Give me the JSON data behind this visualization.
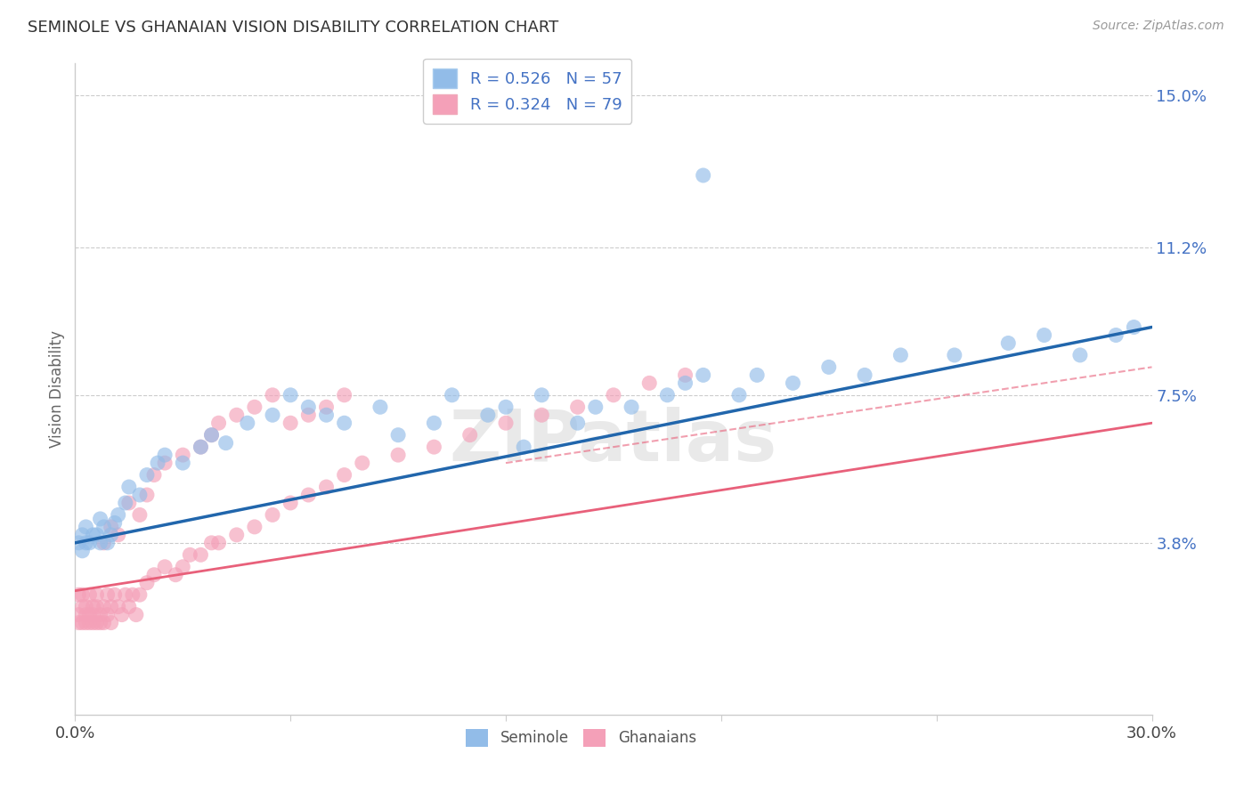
{
  "title": "SEMINOLE VS GHANAIAN VISION DISABILITY CORRELATION CHART",
  "source": "Source: ZipAtlas.com",
  "ylabel": "Vision Disability",
  "xlim": [
    0.0,
    0.3
  ],
  "ylim": [
    -0.005,
    0.158
  ],
  "xticks": [
    0.0,
    0.06,
    0.12,
    0.18,
    0.24,
    0.3
  ],
  "xticklabels": [
    "0.0%",
    "",
    "",
    "",
    "",
    "30.0%"
  ],
  "ytick_positions": [
    0.038,
    0.075,
    0.112,
    0.15
  ],
  "ytick_labels": [
    "3.8%",
    "7.5%",
    "11.2%",
    "15.0%"
  ],
  "seminole_R": 0.526,
  "seminole_N": 57,
  "ghanaian_R": 0.324,
  "ghanaian_N": 79,
  "seminole_color": "#92bce8",
  "ghanaian_color": "#f4a0b8",
  "seminole_line_color": "#2166ac",
  "ghanaian_line_color": "#e8607a",
  "background_color": "#ffffff",
  "watermark": "ZIPatlas",
  "seminole_x": [
    0.001,
    0.002,
    0.002,
    0.003,
    0.003,
    0.004,
    0.005,
    0.006,
    0.007,
    0.007,
    0.008,
    0.009,
    0.01,
    0.011,
    0.012,
    0.014,
    0.015,
    0.018,
    0.02,
    0.023,
    0.025,
    0.03,
    0.035,
    0.038,
    0.042,
    0.048,
    0.055,
    0.06,
    0.065,
    0.07,
    0.075,
    0.085,
    0.09,
    0.1,
    0.105,
    0.115,
    0.12,
    0.125,
    0.13,
    0.14,
    0.145,
    0.155,
    0.165,
    0.17,
    0.175,
    0.185,
    0.19,
    0.2,
    0.21,
    0.22,
    0.23,
    0.245,
    0.26,
    0.27,
    0.28,
    0.29,
    0.295
  ],
  "seminole_y": [
    0.038,
    0.04,
    0.036,
    0.038,
    0.042,
    0.038,
    0.04,
    0.04,
    0.038,
    0.044,
    0.042,
    0.038,
    0.04,
    0.043,
    0.045,
    0.048,
    0.052,
    0.05,
    0.055,
    0.058,
    0.06,
    0.058,
    0.062,
    0.065,
    0.063,
    0.068,
    0.07,
    0.075,
    0.072,
    0.07,
    0.068,
    0.072,
    0.065,
    0.068,
    0.075,
    0.07,
    0.072,
    0.062,
    0.075,
    0.068,
    0.072,
    0.072,
    0.075,
    0.078,
    0.08,
    0.075,
    0.08,
    0.078,
    0.082,
    0.08,
    0.085,
    0.085,
    0.088,
    0.09,
    0.085,
    0.09,
    0.092
  ],
  "seminole_outlier_x": [
    0.175
  ],
  "seminole_outlier_y": [
    0.13
  ],
  "ghanaian_x": [
    0.001,
    0.001,
    0.001,
    0.002,
    0.002,
    0.002,
    0.003,
    0.003,
    0.003,
    0.004,
    0.004,
    0.004,
    0.005,
    0.005,
    0.005,
    0.006,
    0.006,
    0.006,
    0.007,
    0.007,
    0.008,
    0.008,
    0.009,
    0.009,
    0.01,
    0.01,
    0.011,
    0.012,
    0.013,
    0.014,
    0.015,
    0.016,
    0.017,
    0.018,
    0.02,
    0.022,
    0.025,
    0.028,
    0.03,
    0.032,
    0.035,
    0.038,
    0.04,
    0.045,
    0.05,
    0.055,
    0.06,
    0.065,
    0.07,
    0.075,
    0.08,
    0.09,
    0.1,
    0.11,
    0.12,
    0.13,
    0.14,
    0.15,
    0.16,
    0.17,
    0.008,
    0.01,
    0.012,
    0.015,
    0.018,
    0.02,
    0.022,
    0.025,
    0.03,
    0.035,
    0.038,
    0.04,
    0.045,
    0.05,
    0.055,
    0.06,
    0.065,
    0.07,
    0.075
  ],
  "ghanaian_y": [
    0.025,
    0.02,
    0.018,
    0.022,
    0.018,
    0.025,
    0.02,
    0.018,
    0.022,
    0.018,
    0.02,
    0.025,
    0.018,
    0.022,
    0.02,
    0.018,
    0.022,
    0.025,
    0.02,
    0.018,
    0.022,
    0.018,
    0.025,
    0.02,
    0.018,
    0.022,
    0.025,
    0.022,
    0.02,
    0.025,
    0.022,
    0.025,
    0.02,
    0.025,
    0.028,
    0.03,
    0.032,
    0.03,
    0.032,
    0.035,
    0.035,
    0.038,
    0.038,
    0.04,
    0.042,
    0.045,
    0.048,
    0.05,
    0.052,
    0.055,
    0.058,
    0.06,
    0.062,
    0.065,
    0.068,
    0.07,
    0.072,
    0.075,
    0.078,
    0.08,
    0.038,
    0.042,
    0.04,
    0.048,
    0.045,
    0.05,
    0.055,
    0.058,
    0.06,
    0.062,
    0.065,
    0.068,
    0.07,
    0.072,
    0.075,
    0.068,
    0.07,
    0.072,
    0.075
  ],
  "seminole_line_x": [
    0.0,
    0.3
  ],
  "seminole_line_y": [
    0.038,
    0.092
  ],
  "ghanaian_line_x": [
    0.0,
    0.3
  ],
  "ghanaian_line_y": [
    0.026,
    0.068
  ],
  "ghanaian_dashed_line_x": [
    0.12,
    0.3
  ],
  "ghanaian_dashed_line_y": [
    0.058,
    0.082
  ]
}
